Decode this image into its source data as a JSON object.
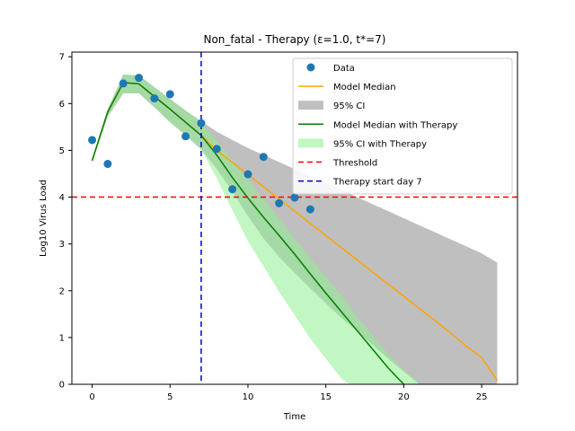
{
  "chart_data": {
    "type": "line",
    "title": "Non_fatal - Therapy (ε=1.0, t*=7)",
    "xlabel": "Time",
    "ylabel": "Log10 Virus Load",
    "xlim": [
      -1.3,
      27.3
    ],
    "ylim": [
      0,
      7.1
    ],
    "xticks": [
      0,
      5,
      10,
      15,
      20,
      25
    ],
    "yticks": [
      0,
      1,
      2,
      3,
      4,
      5,
      6,
      7
    ],
    "legend_position": "upper right",
    "grid": false,
    "data": {
      "name": "Data",
      "color": "#1f77b4",
      "x": [
        0,
        1,
        2,
        3,
        4,
        5,
        6,
        7,
        8,
        9,
        10,
        11,
        12,
        13,
        14
      ],
      "y": [
        5.22,
        4.71,
        6.43,
        6.55,
        6.11,
        6.2,
        5.3,
        5.58,
        5.03,
        4.17,
        4.49,
        4.86,
        3.87,
        3.99,
        3.74
      ]
    },
    "model_median": {
      "name": "Model Median",
      "color": "#ffa500",
      "x": [
        0,
        1,
        2,
        3,
        4,
        5,
        6,
        7,
        8,
        9,
        10,
        11,
        12,
        13,
        14,
        15,
        16,
        17,
        18,
        19,
        20,
        21,
        22,
        23,
        24,
        25,
        26
      ],
      "y": [
        4.78,
        5.82,
        6.45,
        6.42,
        6.15,
        5.88,
        5.6,
        5.32,
        5.0,
        4.74,
        4.48,
        4.22,
        3.96,
        3.7,
        3.44,
        3.18,
        2.92,
        2.66,
        2.4,
        2.14,
        1.88,
        1.62,
        1.36,
        1.1,
        0.82,
        0.57,
        0.08
      ]
    },
    "ci_95": {
      "name": "95% CI",
      "color": "#bfbfbf",
      "x": [
        0,
        1,
        2,
        3,
        4,
        5,
        6,
        7,
        8,
        9,
        10,
        11,
        12,
        13,
        14,
        15,
        16,
        17,
        18,
        19,
        20,
        21,
        22,
        23,
        24,
        25,
        26
      ],
      "upper": [
        4.82,
        5.88,
        6.62,
        6.6,
        6.35,
        6.1,
        5.85,
        5.62,
        5.4,
        5.22,
        5.05,
        4.9,
        4.75,
        4.6,
        4.45,
        4.3,
        4.15,
        4.0,
        3.85,
        3.7,
        3.55,
        3.4,
        3.25,
        3.1,
        2.95,
        2.8,
        2.6
      ],
      "lower": [
        4.74,
        5.72,
        6.22,
        6.22,
        5.92,
        5.6,
        5.32,
        5.02,
        4.6,
        4.12,
        3.6,
        3.12,
        2.72,
        2.38,
        2.05,
        1.73,
        1.42,
        1.13,
        0.84,
        0.55,
        0.27,
        0.0,
        0,
        0,
        0,
        0,
        0
      ]
    },
    "therapy_median": {
      "name": "Model Median with Therapy",
      "color": "#008000",
      "x": [
        0,
        1,
        2,
        3,
        4,
        5,
        6,
        7,
        8,
        9,
        10,
        11,
        12,
        13,
        14,
        15,
        16,
        17,
        18,
        19,
        20,
        21
      ],
      "y": [
        4.78,
        5.82,
        6.45,
        6.42,
        6.15,
        5.88,
        5.6,
        5.32,
        4.9,
        4.42,
        3.98,
        3.57,
        3.18,
        2.78,
        2.36,
        1.95,
        1.55,
        1.15,
        0.75,
        0.35,
        0.0,
        -0.05
      ]
    },
    "therapy_ci": {
      "name": "95% CI with Therapy",
      "color": "#90ee90",
      "x": [
        0,
        1,
        2,
        3,
        4,
        5,
        6,
        7,
        8,
        9,
        10,
        11,
        12,
        13,
        14,
        15,
        16,
        17,
        18,
        19,
        20,
        21,
        22
      ],
      "upper": [
        4.82,
        5.88,
        6.62,
        6.6,
        6.35,
        6.1,
        5.85,
        5.62,
        5.2,
        4.78,
        4.38,
        3.95,
        3.55,
        3.12,
        2.7,
        2.3,
        1.9,
        1.45,
        1.05,
        0.65,
        0.3,
        0.03,
        -0.2
      ],
      "lower": [
        4.74,
        5.72,
        6.22,
        6.22,
        5.92,
        5.6,
        5.32,
        5.02,
        4.4,
        3.72,
        3.06,
        2.52,
        1.98,
        1.48,
        0.98,
        0.55,
        0.12,
        -0.1,
        -0.2,
        -0.2,
        -0.2,
        -0.2,
        -0.2
      ]
    },
    "threshold": {
      "name": "Threshold",
      "y": 4.0,
      "color": "#ff0000"
    },
    "therapy_start": {
      "name": "Therapy start day 7",
      "x": 7,
      "color": "#0000cd"
    }
  }
}
